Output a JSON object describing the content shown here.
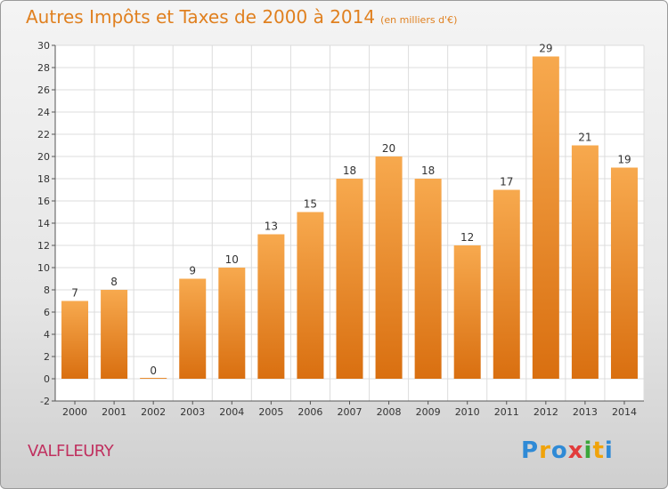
{
  "title": "Autres Impôts et Taxes de 2000 à 2014",
  "unit_note": "(en milliers d'€)",
  "place": "VALFLEURY",
  "logo": {
    "letters": [
      "P",
      "r",
      "o",
      "x",
      "i",
      "t",
      "i"
    ],
    "colors": [
      "#2f8ad6",
      "#f0a30a",
      "#2f8ad6",
      "#e23b3b",
      "#3aa63a",
      "#f0a30a",
      "#2f8ad6"
    ]
  },
  "colors": {
    "bar_top": "#f7a94e",
    "bar_bottom": "#d96f10",
    "title": "#e0801f",
    "place": "#c0305f"
  },
  "chart_data": {
    "type": "bar",
    "categories": [
      "2000",
      "2001",
      "2002",
      "2003",
      "2004",
      "2005",
      "2006",
      "2007",
      "2008",
      "2009",
      "2010",
      "2011",
      "2012",
      "2013",
      "2014"
    ],
    "values": [
      7,
      8,
      0,
      9,
      10,
      13,
      15,
      18,
      20,
      18,
      12,
      17,
      29,
      21,
      19
    ],
    "data_labels": [
      "7",
      "8",
      "0",
      "9",
      "10",
      "13",
      "15",
      "18",
      "20",
      "18",
      "12",
      "17",
      "29",
      "21",
      "19"
    ],
    "yticks": [
      "-2",
      "0",
      "2",
      "4",
      "6",
      "8",
      "10",
      "12",
      "14",
      "16",
      "18",
      "20",
      "22",
      "24",
      "26",
      "28",
      "30"
    ],
    "ylim": [
      -2,
      30
    ],
    "grid": true
  }
}
